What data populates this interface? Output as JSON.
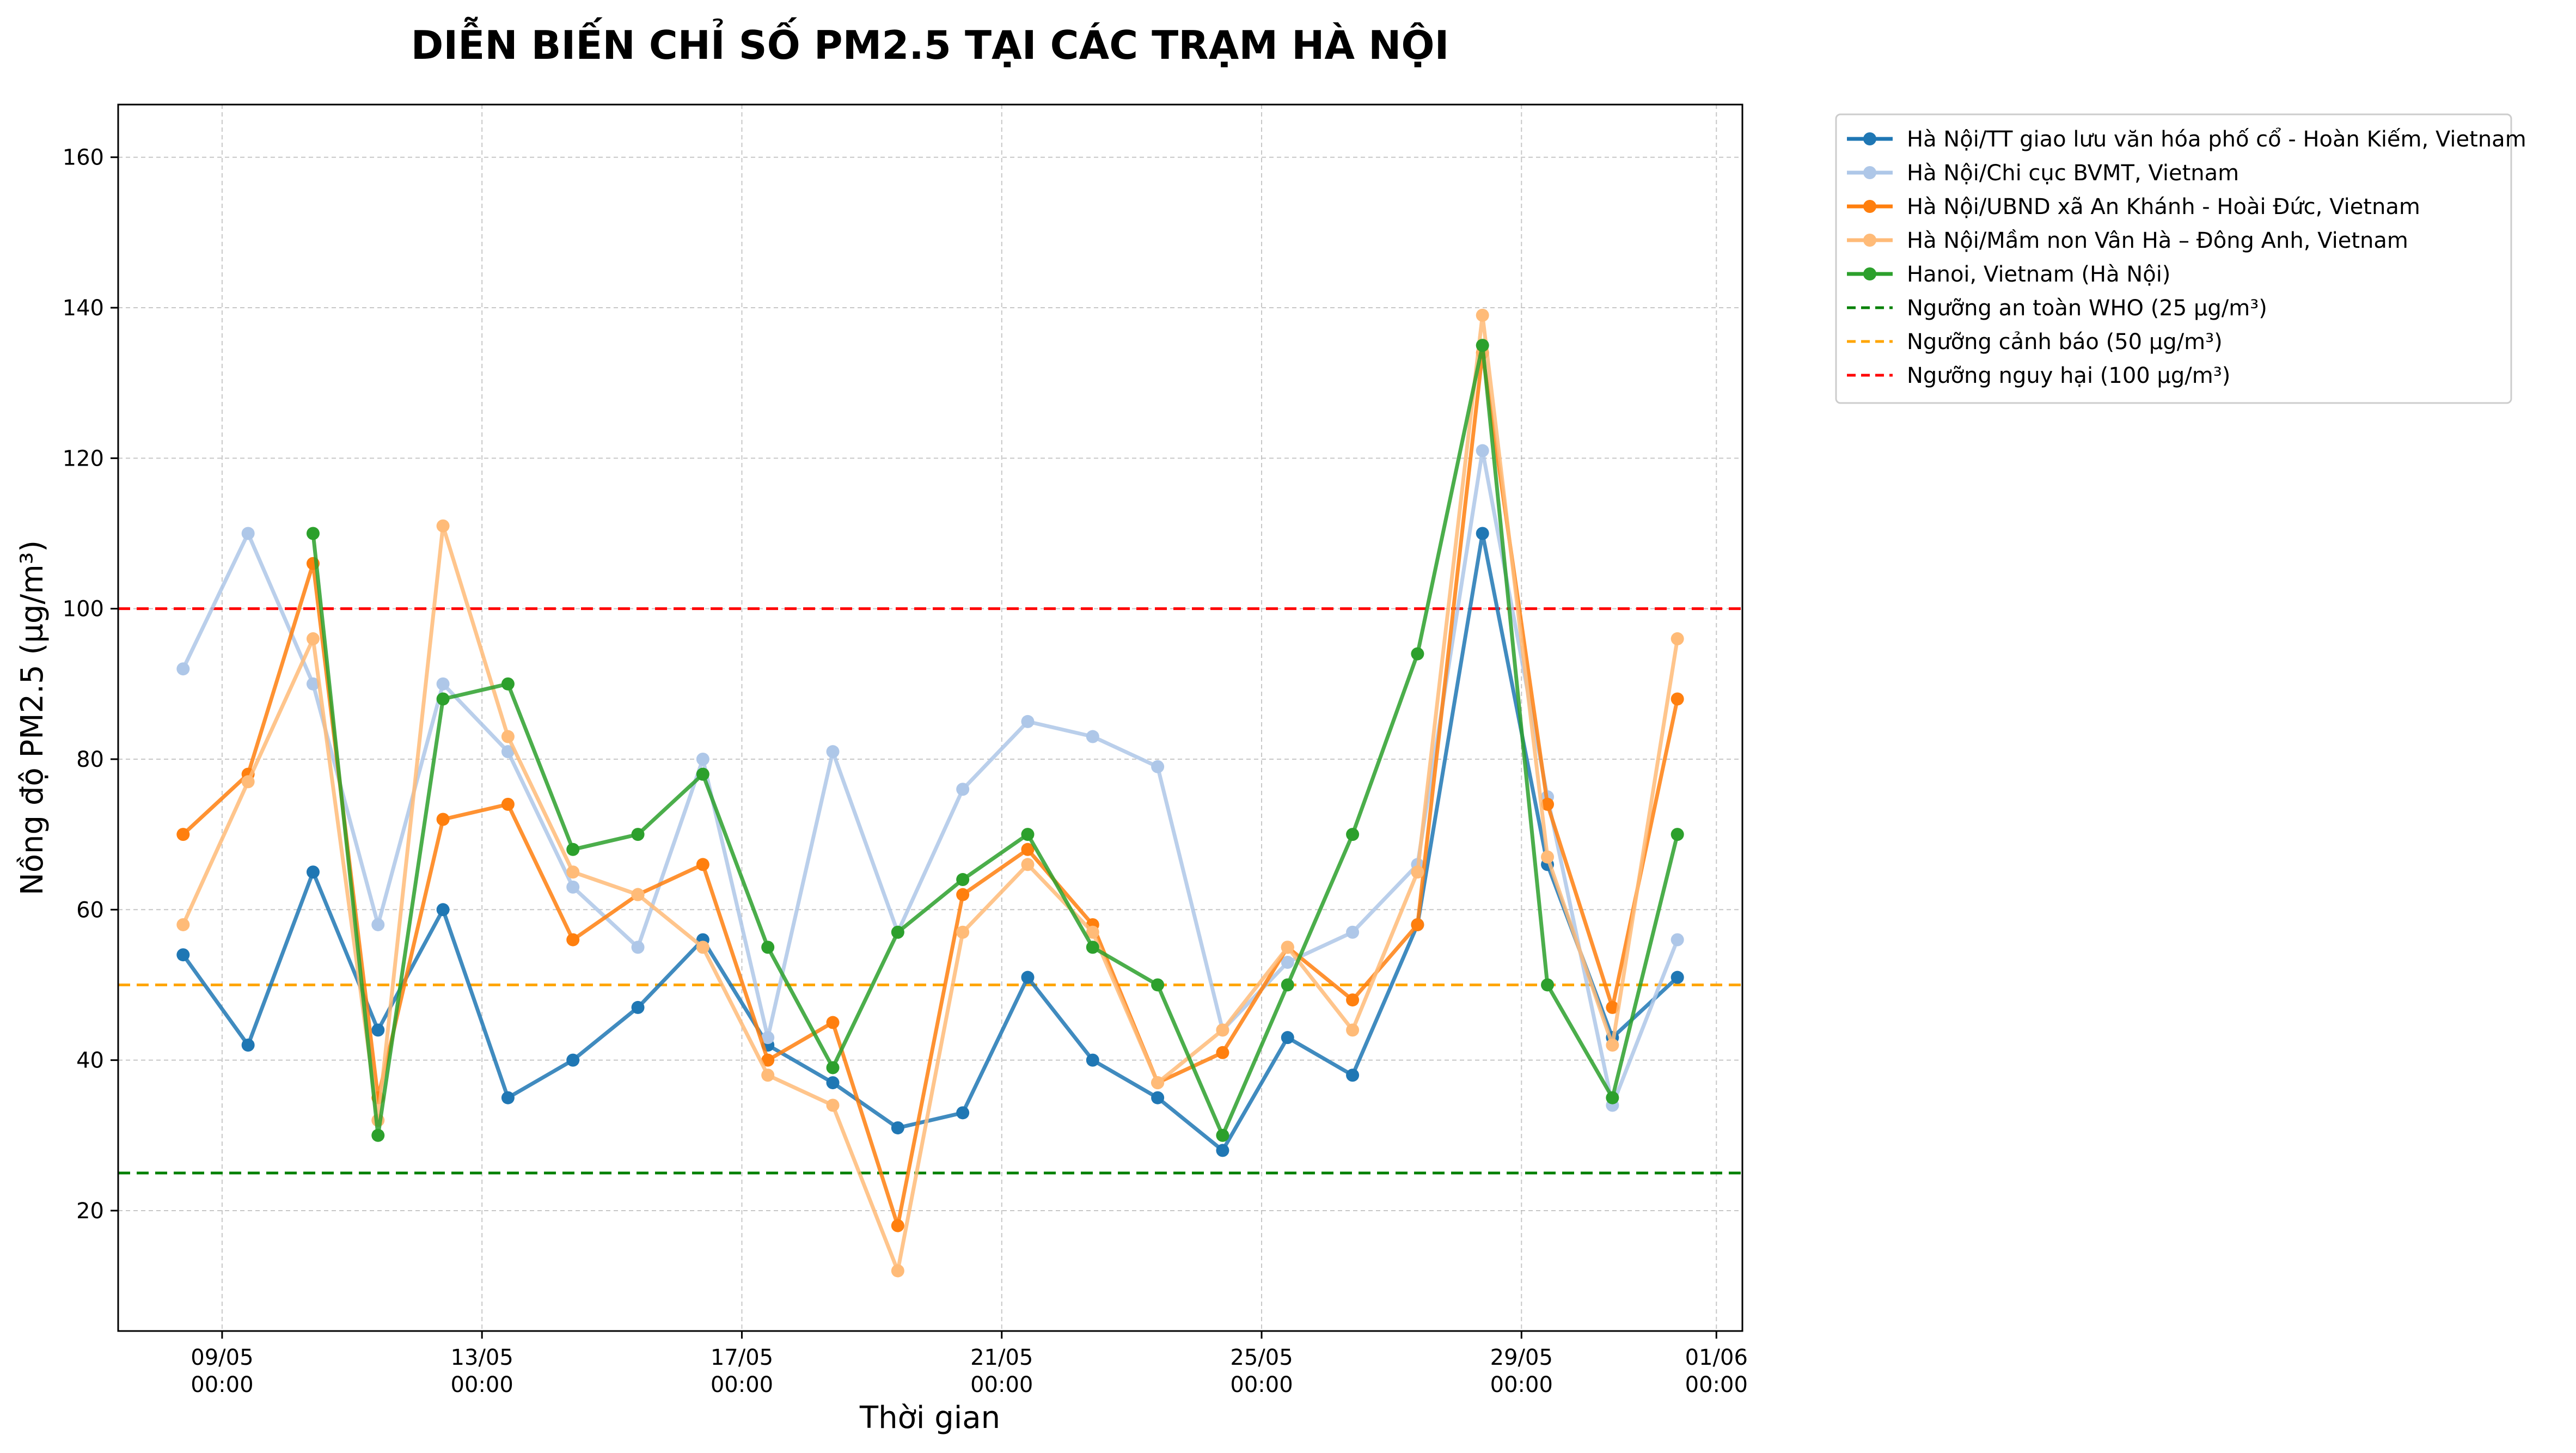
{
  "chart_data": {
    "type": "line",
    "title": "DIỄN BIẾN CHỈ SỐ PM2.5 TẠI CÁC TRẠM HÀ NỘI",
    "xlabel": "Thời gian",
    "ylabel": "Nồng độ PM2.5 (µg/m³)",
    "xlim": [
      -1.6,
      23.4
    ],
    "ylim": [
      4,
      167
    ],
    "x_ticks": [
      {
        "x": 0,
        "label1": "09/05",
        "label2": "00:00"
      },
      {
        "x": 4,
        "label1": "13/05",
        "label2": "00:00"
      },
      {
        "x": 8,
        "label1": "17/05",
        "label2": "00:00"
      },
      {
        "x": 12,
        "label1": "21/05",
        "label2": "00:00"
      },
      {
        "x": 16,
        "label1": "25/05",
        "label2": "00:00"
      },
      {
        "x": 20,
        "label1": "29/05",
        "label2": "00:00"
      },
      {
        "x": 23,
        "label1": "01/06",
        "label2": "00:00"
      }
    ],
    "y_ticks": [
      20,
      40,
      60,
      80,
      100,
      120,
      140,
      160
    ],
    "grid": true,
    "legend_position": "outside-top-right",
    "series": [
      {
        "name": "Hà Nội/TT giao lưu văn hóa phố cổ - Hoàn Kiếm, Vietnam",
        "color": "#1f77b4",
        "x": [
          -0.6,
          0.4,
          1.4,
          2.4,
          3.4,
          4.4,
          5.4,
          6.4,
          7.4,
          8.4,
          9.4,
          10.4,
          11.4,
          12.4,
          13.4,
          14.4,
          15.4,
          16.4,
          17.4,
          18.4,
          19.4,
          20.4,
          21.4,
          22.4
        ],
        "y": [
          54,
          42,
          65,
          44,
          60,
          35,
          40,
          47,
          56,
          42,
          37,
          31,
          33,
          51,
          40,
          35,
          28,
          43,
          38,
          58,
          110,
          66,
          43,
          51
        ]
      },
      {
        "name": "Hà Nội/Chi cục BVMT, Vietnam",
        "color": "#aec7e8",
        "x": [
          -0.6,
          0.4,
          1.4,
          2.4,
          3.4,
          4.4,
          5.4,
          6.4,
          7.4,
          8.4,
          9.4,
          10.4,
          11.4,
          12.4,
          13.4,
          14.4,
          15.4,
          16.4,
          17.4,
          18.4,
          19.4,
          20.4,
          21.4,
          22.4
        ],
        "y": [
          92,
          110,
          90,
          58,
          90,
          81,
          63,
          55,
          80,
          43,
          81,
          57,
          76,
          85,
          83,
          79,
          44,
          53,
          57,
          66,
          121,
          75,
          34,
          56
        ]
      },
      {
        "name": "Hà Nội/UBND xã An Khánh - Hoài Đức, Vietnam",
        "color": "#ff7f0e",
        "x": [
          -0.6,
          0.4,
          1.4,
          2.4,
          3.4,
          4.4,
          5.4,
          6.4,
          7.4,
          8.4,
          9.4,
          10.4,
          11.4,
          12.4,
          13.4,
          14.4,
          15.4,
          16.4,
          17.4,
          18.4,
          19.4,
          20.4,
          21.4,
          22.4
        ],
        "y": [
          70,
          78,
          106,
          35,
          72,
          74,
          56,
          62,
          66,
          40,
          45,
          18,
          62,
          68,
          58,
          37,
          41,
          55,
          48,
          58,
          134,
          74,
          47,
          88
        ]
      },
      {
        "name": "Hà Nội/Mầm non Vân Hà – Đông Anh, Vietnam",
        "color": "#ffbb78",
        "x": [
          -0.6,
          0.4,
          1.4,
          2.4,
          3.4,
          4.4,
          5.4,
          6.4,
          7.4,
          8.4,
          9.4,
          10.4,
          11.4,
          12.4,
          13.4,
          14.4,
          15.4,
          16.4,
          17.4,
          18.4,
          19.4,
          20.4,
          21.4,
          22.4
        ],
        "y": [
          58,
          77,
          96,
          32,
          111,
          83,
          65,
          62,
          55,
          38,
          34,
          12,
          57,
          66,
          57,
          37,
          44,
          55,
          44,
          65,
          139,
          67,
          42,
          96
        ]
      },
      {
        "name": "Hanoi, Vietnam (Hà Nội)",
        "color": "#2ca02c",
        "x": [
          -0.6,
          0.4,
          1.4,
          2.4,
          3.4,
          4.4,
          5.4,
          6.4,
          7.4,
          8.4,
          9.4,
          10.4,
          11.4,
          12.4,
          13.4,
          14.4,
          15.4,
          16.4,
          17.4,
          18.4,
          19.4,
          20.4,
          21.4,
          22.4
        ],
        "y": [
          null,
          null,
          110,
          30,
          88,
          90,
          68,
          70,
          78,
          55,
          39,
          57,
          64,
          70,
          55,
          50,
          30,
          50,
          70,
          94,
          135,
          50,
          35,
          70
        ]
      }
    ],
    "thresholds": [
      {
        "name": "Ngưỡng an toàn WHO (25 µg/m³)",
        "value": 25,
        "color": "#008000"
      },
      {
        "name": "Ngưỡng cảnh báo (50 µg/m³)",
        "value": 50,
        "color": "#ffa500"
      },
      {
        "name": "Ngưỡng nguy hại (100 µg/m³)",
        "value": 100,
        "color": "#ff0000"
      }
    ]
  }
}
